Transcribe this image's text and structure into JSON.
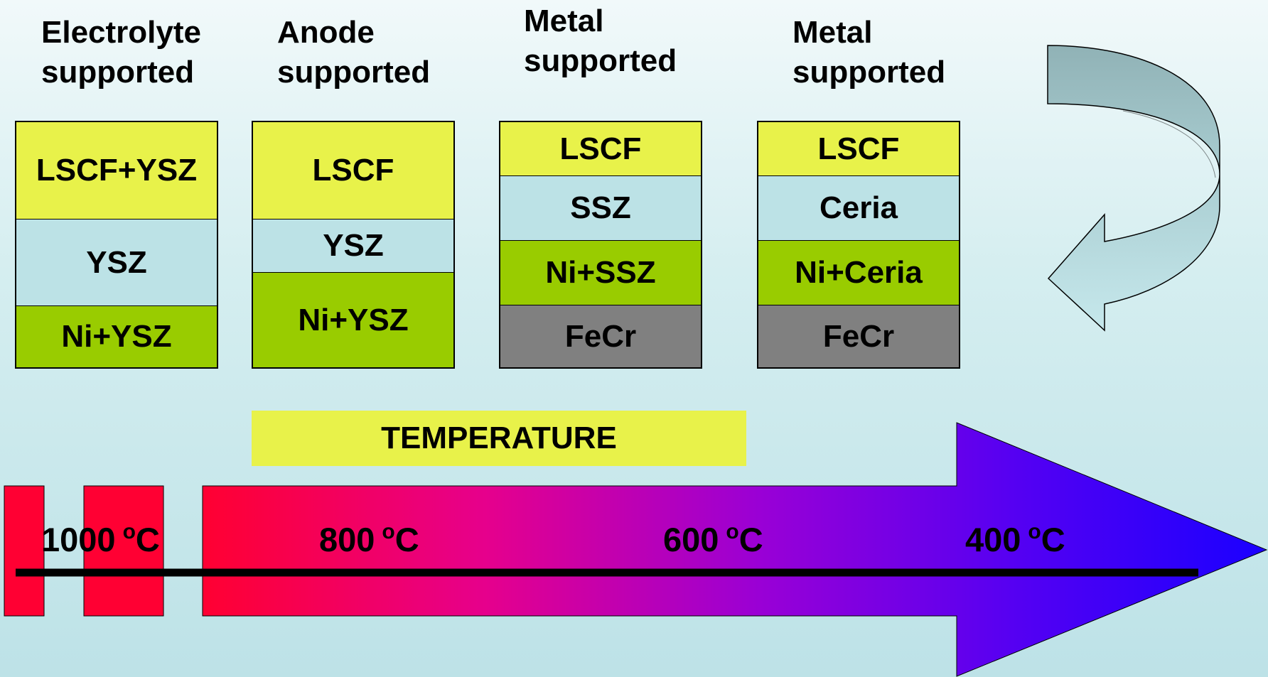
{
  "headers": [
    {
      "line1": "Electrolyte",
      "line2": "supported"
    },
    {
      "line1": "Anode",
      "line2": "supported"
    },
    {
      "line1": "Metal",
      "line2": "supported"
    },
    {
      "line1": "Metal",
      "line2": "supported"
    }
  ],
  "stacks": [
    {
      "layers": [
        {
          "label": "LSCF+YSZ"
        },
        {
          "label": "YSZ"
        },
        {
          "label": "Ni+YSZ"
        }
      ]
    },
    {
      "layers": [
        {
          "label": "LSCF"
        },
        {
          "label": "YSZ"
        },
        {
          "label": "Ni+YSZ"
        }
      ]
    },
    {
      "layers": [
        {
          "label": "LSCF"
        },
        {
          "label": "SSZ"
        },
        {
          "label": "Ni+SSZ"
        },
        {
          "label": "FeCr"
        }
      ]
    },
    {
      "layers": [
        {
          "label": "LSCF"
        },
        {
          "label": "Ceria"
        },
        {
          "label": "Ni+Ceria"
        },
        {
          "label": "FeCr"
        }
      ]
    }
  ],
  "temperature_label": "TEMPERATURE",
  "temperatures": [
    {
      "value": "1000",
      "unit_sup": "o",
      "unit": "C"
    },
    {
      "value": "800",
      "unit_sup": "o",
      "unit": "C"
    },
    {
      "value": "600",
      "unit_sup": "o",
      "unit": "C"
    },
    {
      "value": "400",
      "unit_sup": "o",
      "unit": "C"
    }
  ],
  "colors": {
    "cathode_yellow": "#e8f24a",
    "electrolyte_blue": "#bce2e6",
    "anode_green": "#99cc00",
    "metal_gray": "#808080",
    "hot_red": "#ff0033",
    "cool_blue": "#1a00ff",
    "curved_arrow": "#a6c8cc"
  }
}
